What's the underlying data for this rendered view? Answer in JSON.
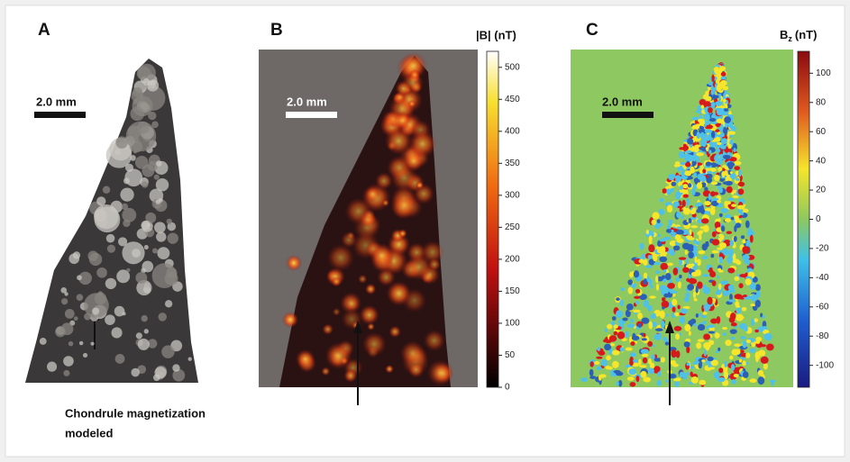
{
  "panels": [
    {
      "label": "A",
      "scale_bar": "2.0 mm",
      "annotation": [
        "Chondrule magnetization",
        "modeled"
      ]
    },
    {
      "label": "B",
      "scale_bar": "2.0 mm",
      "colorbar": {
        "label": "|B| (nT)",
        "clim": [
          0,
          525
        ],
        "ticks": [
          0,
          50,
          100,
          150,
          200,
          250,
          300,
          350,
          400,
          450,
          500
        ]
      }
    },
    {
      "label": "C",
      "scale_bar": "2.0 mm",
      "colorbar": {
        "label": "B",
        "label_sub": "z",
        "label_unit": "(nT)",
        "clim": [
          -115,
          115
        ],
        "ticks": [
          -100,
          -80,
          -60,
          -40,
          -20,
          0,
          20,
          40,
          60,
          80,
          100
        ]
      }
    }
  ]
}
